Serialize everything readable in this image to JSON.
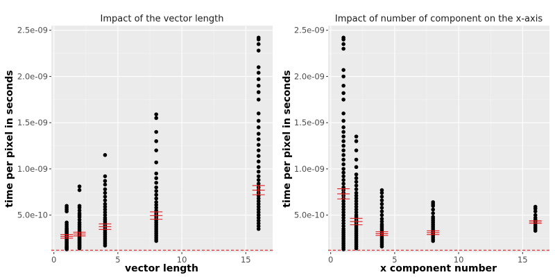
{
  "chart_data": [
    {
      "type": "scatter",
      "title": "Impact of the vector length",
      "xlabel": "vector length",
      "ylabel": "time per pixel in seconds",
      "xlim": [
        -0.2,
        17.1
      ],
      "ylim": [
        1e-10,
        2.55e-09
      ],
      "x_ticks": [
        0,
        5,
        10,
        15
      ],
      "x_tick_labels": [
        "0",
        "5",
        "10",
        "15"
      ],
      "y_ticks": [
        5e-10,
        1e-09,
        1.5e-09,
        2e-09,
        2.5e-09
      ],
      "y_tick_labels": [
        "5.0e-10",
        "1.0e-09",
        "1.5e-09",
        "2.0e-09",
        "2.5e-09"
      ],
      "grid": true,
      "reference_line": {
        "y": 1.2e-10,
        "style": "dashed",
        "color": "#e41a1c"
      },
      "groups": [
        {
          "x": 1,
          "mean": 2.7e-10,
          "err": 2e-11,
          "values": [
            1.3e-10,
            1.4e-10,
            1.45e-10,
            1.5e-10,
            1.55e-10,
            1.6e-10,
            1.7e-10,
            1.8e-10,
            1.9e-10,
            2e-10,
            2.1e-10,
            2.2e-10,
            2.3e-10,
            2.4e-10,
            2.5e-10,
            2.6e-10,
            2.7e-10,
            2.8e-10,
            2.9e-10,
            3e-10,
            3.1e-10,
            3.2e-10,
            3.3e-10,
            3.4e-10,
            3.5e-10,
            3.6e-10,
            3.8e-10,
            4e-10,
            4.2e-10,
            5.4e-10,
            5.6e-10,
            5.8e-10,
            6e-10
          ]
        },
        {
          "x": 2,
          "mean": 2.95e-10,
          "err": 2e-11,
          "values": [
            1.4e-10,
            1.5e-10,
            1.6e-10,
            1.7e-10,
            1.8e-10,
            1.9e-10,
            2e-10,
            2.1e-10,
            2.2e-10,
            2.3e-10,
            2.4e-10,
            2.5e-10,
            2.6e-10,
            2.7e-10,
            2.8e-10,
            2.9e-10,
            3e-10,
            3.1e-10,
            3.2e-10,
            3.4e-10,
            3.6e-10,
            3.8e-10,
            4e-10,
            4.2e-10,
            4.5e-10,
            4.8e-10,
            5e-10,
            5.2e-10,
            5.5e-10,
            5.8e-10,
            6e-10,
            7.7e-10,
            8.1e-10
          ]
        },
        {
          "x": 4,
          "mean": 3.75e-10,
          "err": 3e-11,
          "values": [
            1.7e-10,
            1.9e-10,
            2.1e-10,
            2.3e-10,
            2.5e-10,
            2.7e-10,
            2.9e-10,
            3.1e-10,
            3.3e-10,
            3.5e-10,
            3.7e-10,
            3.9e-10,
            4.1e-10,
            4.3e-10,
            4.5e-10,
            4.7e-10,
            5e-10,
            5.3e-10,
            5.6e-10,
            5.9e-10,
            6.2e-10,
            6.6e-10,
            7e-10,
            7.4e-10,
            7.8e-10,
            8.3e-10,
            8.7e-10,
            9.2e-10,
            1.15e-09
          ]
        },
        {
          "x": 8,
          "mean": 4.95e-10,
          "err": 4e-11,
          "values": [
            2.2e-10,
            2.4e-10,
            2.6e-10,
            2.8e-10,
            3e-10,
            3.2e-10,
            3.4e-10,
            3.6e-10,
            3.8e-10,
            4e-10,
            4.2e-10,
            4.4e-10,
            4.6e-10,
            4.8e-10,
            5e-10,
            5.2e-10,
            5.5e-10,
            5.8e-10,
            6.1e-10,
            6.4e-10,
            6.8e-10,
            7.2e-10,
            7.6e-10,
            8e-10,
            8.5e-10,
            9e-10,
            9.5e-10,
            1.07e-09,
            1.2e-09,
            1.3e-09,
            1.4e-09,
            1.55e-09,
            1.59e-09
          ]
        },
        {
          "x": 16,
          "mean": 7.7e-10,
          "err": 5e-11,
          "values": [
            3.5e-10,
            3.8e-10,
            4.1e-10,
            4.4e-10,
            4.7e-10,
            5e-10,
            5.3e-10,
            5.6e-10,
            5.9e-10,
            6.2e-10,
            6.5e-10,
            6.8e-10,
            7.1e-10,
            7.4e-10,
            7.7e-10,
            8e-10,
            8.4e-10,
            8.8e-10,
            9.2e-10,
            9.7e-10,
            1.02e-09,
            1.08e-09,
            1.14e-09,
            1.2e-09,
            1.26e-09,
            1.32e-09,
            1.38e-09,
            1.45e-09,
            1.52e-09,
            1.6e-09,
            1.75e-09,
            1.83e-09,
            1.9e-09,
            1.97e-09,
            2.04e-09,
            2.1e-09,
            2.28e-09,
            2.35e-09,
            2.4e-09,
            2.42e-09
          ]
        }
      ]
    },
    {
      "type": "scatter",
      "title": "Impact of number of component on the x-axis",
      "xlabel": "x component number",
      "ylabel": "time per pixel in seconds",
      "xlim": [
        -0.2,
        17.1
      ],
      "ylim": [
        1e-10,
        2.55e-09
      ],
      "x_ticks": [
        0,
        5,
        10,
        15
      ],
      "x_tick_labels": [
        "0",
        "5",
        "10",
        "15"
      ],
      "y_ticks": [
        5e-10,
        1e-09,
        1.5e-09,
        2e-09,
        2.5e-09
      ],
      "y_tick_labels": [
        "5.0e-10",
        "1.0e-09",
        "1.5e-09",
        "2.0e-09",
        "2.5e-09"
      ],
      "grid": true,
      "reference_line": {
        "y": 1.2e-10,
        "style": "dashed",
        "color": "#e41a1c"
      },
      "groups": [
        {
          "x": 1,
          "mean": 7.3e-10,
          "err": 5.5e-11,
          "values": [
            1.3e-10,
            1.5e-10,
            1.7e-10,
            1.9e-10,
            2.1e-10,
            2.3e-10,
            2.5e-10,
            2.7e-10,
            2.9e-10,
            3.1e-10,
            3.3e-10,
            3.5e-10,
            3.8e-10,
            4.1e-10,
            4.4e-10,
            4.7e-10,
            5e-10,
            5.3e-10,
            5.6e-10,
            5.9e-10,
            6.2e-10,
            6.5e-10,
            6.8e-10,
            7.1e-10,
            7.4e-10,
            7.7e-10,
            8e-10,
            8.4e-10,
            8.8e-10,
            9.2e-10,
            9.6e-10,
            1e-09,
            1.05e-09,
            1.1e-09,
            1.15e-09,
            1.2e-09,
            1.25e-09,
            1.3e-09,
            1.35e-09,
            1.4e-09,
            1.45e-09,
            1.52e-09,
            1.6e-09,
            1.75e-09,
            1.82e-09,
            1.9e-09,
            2e-09,
            2.07e-09,
            2.3e-09,
            2.35e-09,
            2.4e-09,
            2.42e-09
          ]
        },
        {
          "x": 2,
          "mean": 4.3e-10,
          "err": 3.5e-11,
          "values": [
            1.4e-10,
            1.6e-10,
            1.8e-10,
            2e-10,
            2.2e-10,
            2.4e-10,
            2.6e-10,
            2.8e-10,
            3e-10,
            3.2e-10,
            3.4e-10,
            3.6e-10,
            3.8e-10,
            4e-10,
            4.2e-10,
            4.4e-10,
            4.6e-10,
            4.8e-10,
            5e-10,
            5.3e-10,
            5.6e-10,
            5.9e-10,
            6.2e-10,
            6.5e-10,
            6.8e-10,
            7.1e-10,
            7.4e-10,
            7.8e-10,
            8.2e-10,
            8.6e-10,
            9e-10,
            9.4e-10,
            1.02e-09,
            1.1e-09,
            1.2e-09,
            1.3e-09,
            1.35e-09
          ]
        },
        {
          "x": 4,
          "mean": 3e-10,
          "err": 2e-11,
          "values": [
            1.6e-10,
            1.8e-10,
            2e-10,
            2.2e-10,
            2.4e-10,
            2.6e-10,
            2.8e-10,
            3e-10,
            3.2e-10,
            3.4e-10,
            3.6e-10,
            3.8e-10,
            4e-10,
            4.3e-10,
            4.6e-10,
            5e-10,
            5.4e-10,
            5.8e-10,
            6.2e-10,
            6.6e-10,
            7e-10,
            7.4e-10,
            7.7e-10
          ]
        },
        {
          "x": 8,
          "mean": 3.1e-10,
          "err": 2e-11,
          "values": [
            2.2e-10,
            2.4e-10,
            2.6e-10,
            2.8e-10,
            3e-10,
            3.2e-10,
            3.4e-10,
            3.6e-10,
            3.8e-10,
            4e-10,
            4.2e-10,
            4.4e-10,
            4.6e-10,
            4.8e-10,
            5.2e-10,
            5.6e-10,
            6e-10,
            6.2e-10,
            6.4e-10
          ]
        },
        {
          "x": 16,
          "mean": 4.25e-10,
          "err": 1.5e-11,
          "values": [
            3.3e-10,
            3.5e-10,
            3.7e-10,
            3.9e-10,
            4.1e-10,
            4.3e-10,
            4.5e-10,
            4.7e-10,
            5e-10,
            5.4e-10,
            5.7e-10,
            5.9e-10
          ]
        }
      ]
    }
  ]
}
